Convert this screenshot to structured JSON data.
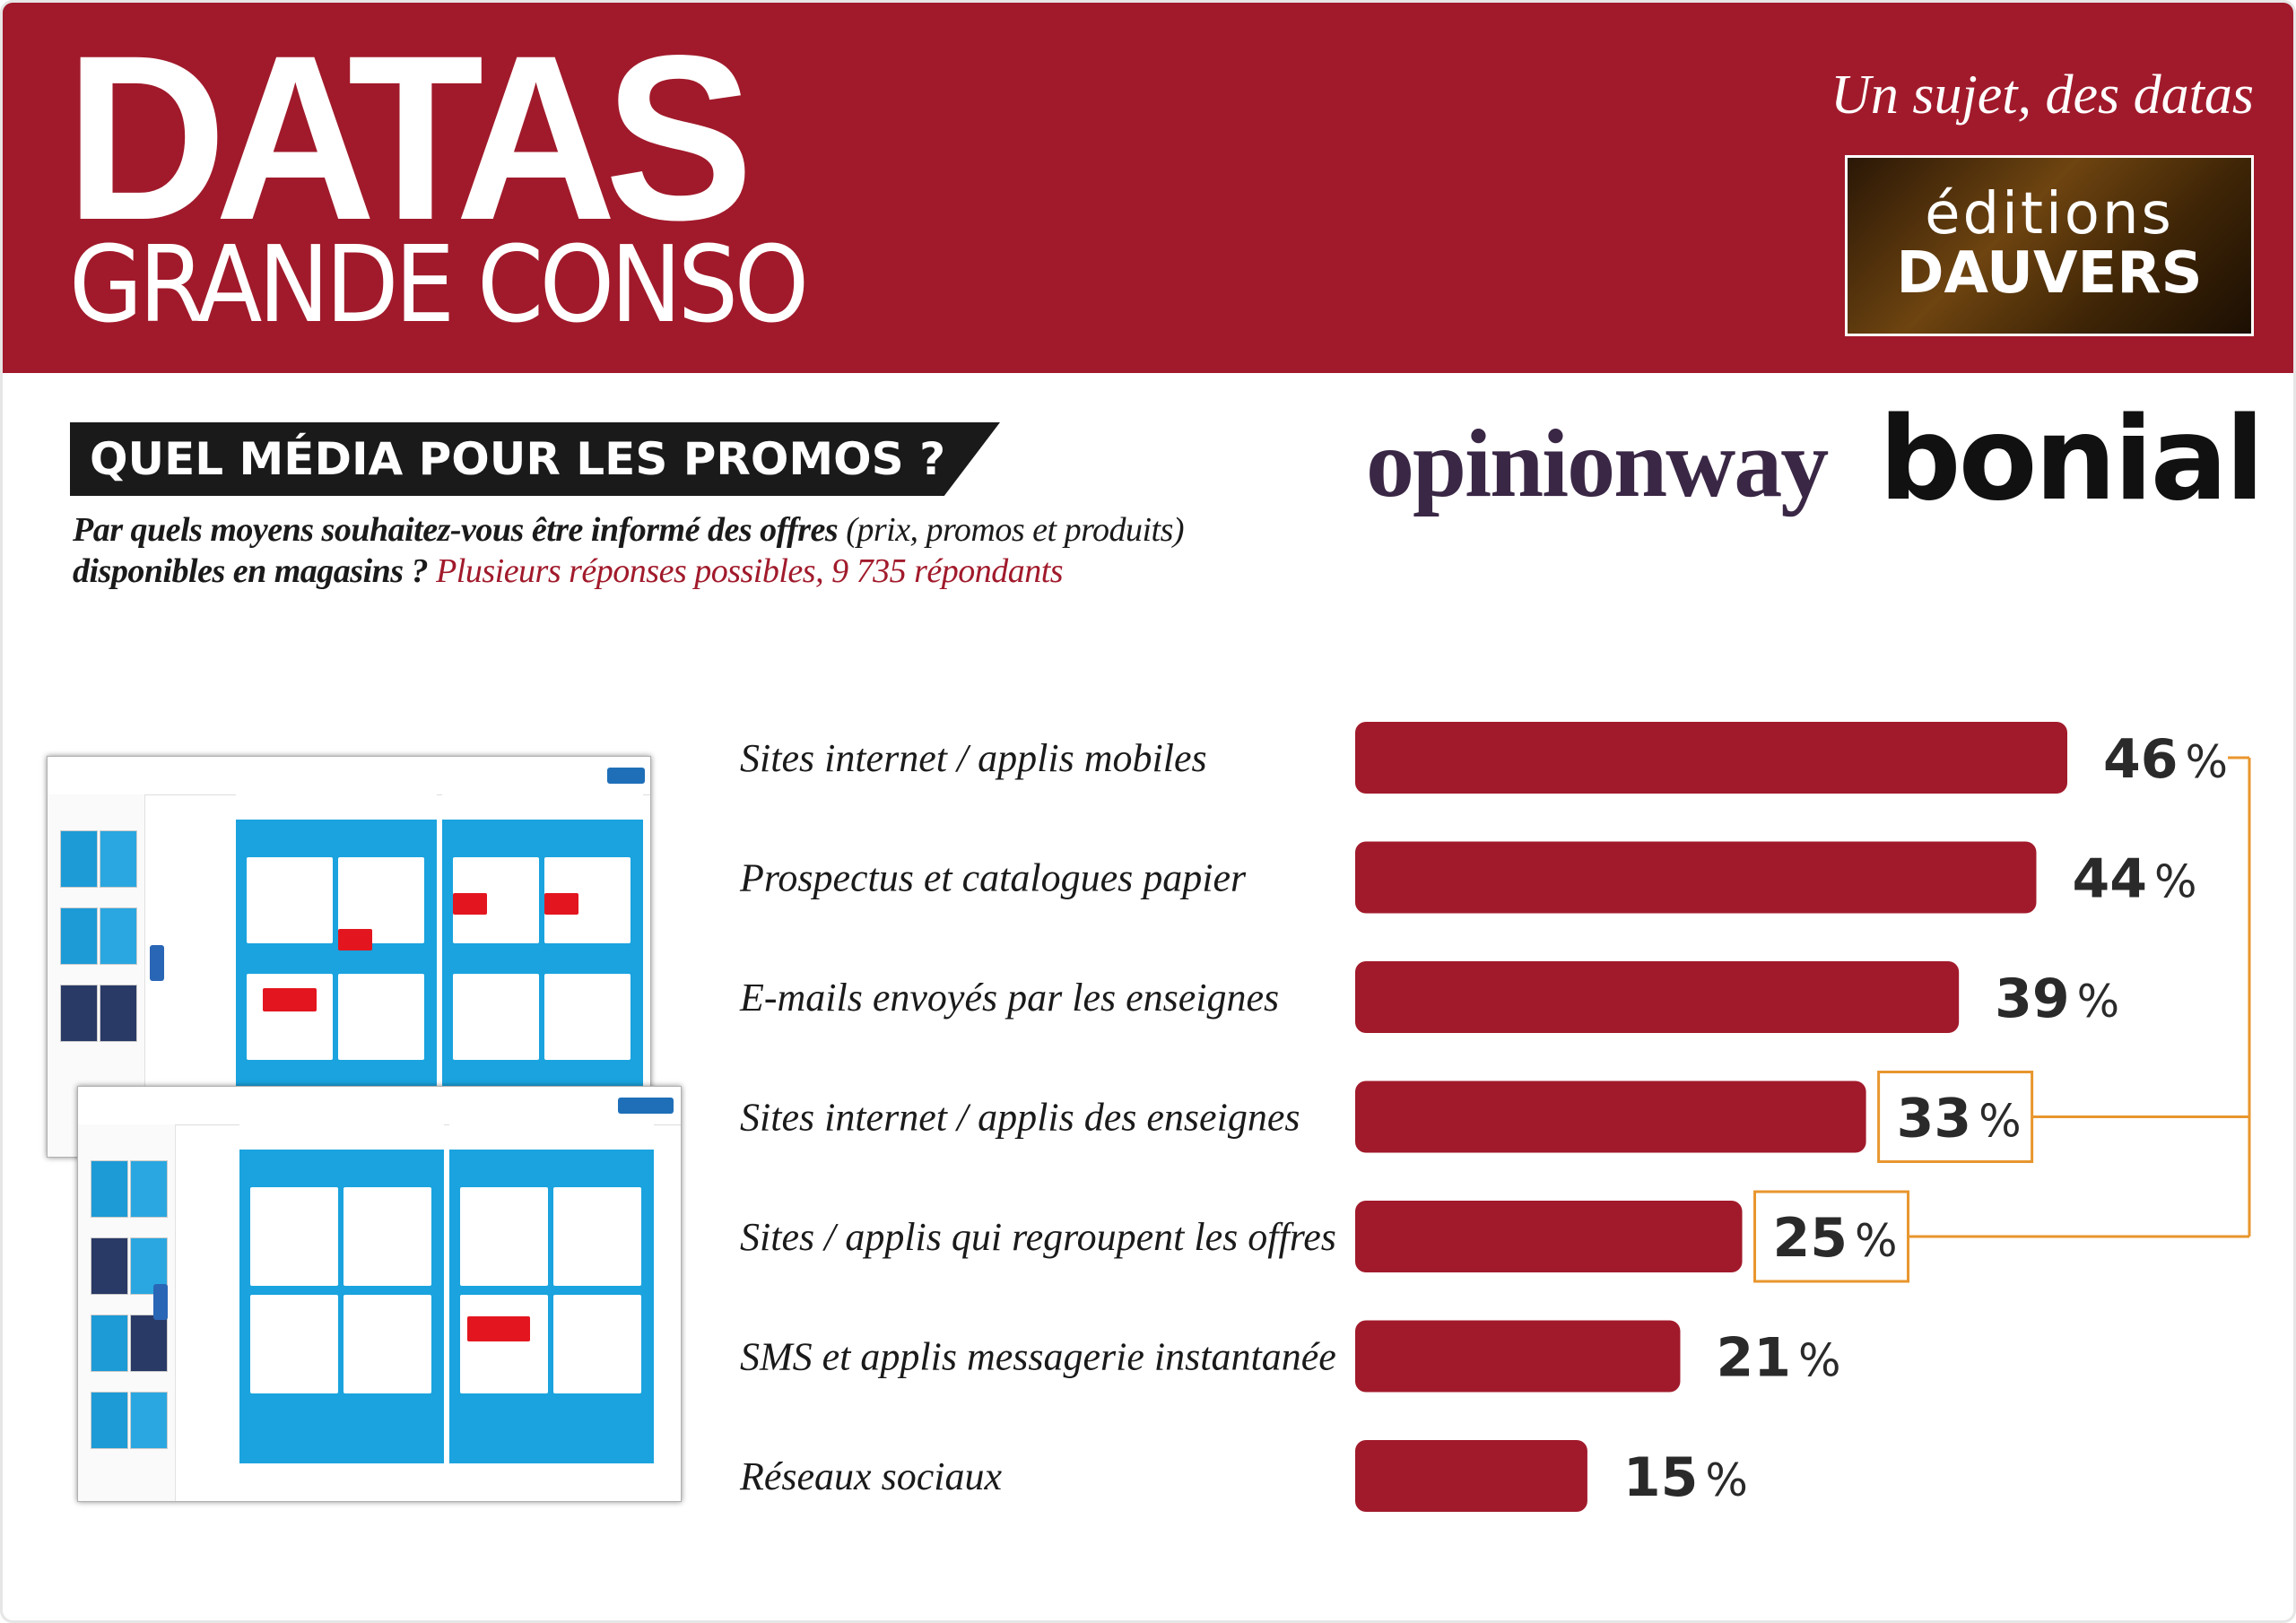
{
  "header": {
    "brand_main": "DATAS",
    "brand_sub": "GRANDE CONSO",
    "tagline": "Un sujet, des datas",
    "publisher_line1": "éditions",
    "publisher_line2": "DAUVERS"
  },
  "section": {
    "title": "QUEL MÉDIA POUR LES PROMOS ?",
    "question_main_1": "Par quels moyens souhaitez-vous être informé des offres",
    "question_paren": " (prix, promos et produits)",
    "question_main_2": "disponibles en magasins ?",
    "question_note": " Plusieurs réponses possibles, 9 735 répondants"
  },
  "logos": {
    "opinionway": "opinionway",
    "bonial": "bonial"
  },
  "colors": {
    "brand_red": "#a11a2b",
    "bar_red": "#a11a2b",
    "highlight_orange": "#e8962e",
    "dark": "#1a1a1a"
  },
  "chart_data": {
    "type": "bar",
    "orientation": "horizontal",
    "title": "",
    "xlabel": "",
    "ylabel": "",
    "unit": "%",
    "xlim": [
      0,
      46
    ],
    "categories": [
      "Sites internet / applis mobiles",
      "Prospectus et catalogues papier",
      "E-mails envoyés par les enseignes",
      "Sites internet / applis des enseignes",
      "Sites / applis qui regroupent les offres",
      "SMS et applis messagerie instantanée",
      "Réseaux sociaux"
    ],
    "values": [
      46,
      44,
      39,
      33,
      25,
      21,
      15
    ],
    "highlighted": [
      3,
      4
    ],
    "bracket": {
      "total": 0,
      "parts": [
        3,
        4
      ]
    },
    "grid": false,
    "legend": "none"
  },
  "mockups": {
    "icons": [
      "flyer-page",
      "product-tile",
      "promo-badge"
    ]
  }
}
